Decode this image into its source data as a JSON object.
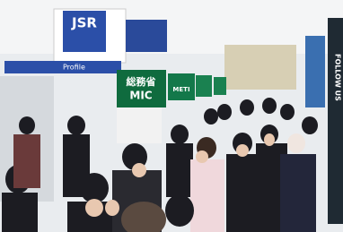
{
  "signs": {
    "company": "JSR",
    "profile": "Profile",
    "ministry_jp": "総務省",
    "ministry_en": "MIC",
    "meti": "METI",
    "follow": "FOLLOW US"
  }
}
